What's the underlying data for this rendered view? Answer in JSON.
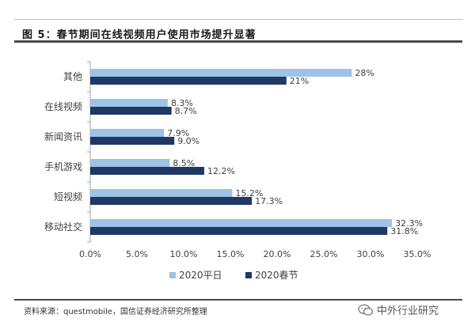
{
  "title": "图 5：春节期间在线视频用户使用市场提升显著",
  "source": "资料来源：questmobile，国信证券经济研究所整理",
  "watermark": "中外行业研究",
  "colors": {
    "series_a": "#9dc3e6",
    "series_b": "#1f3864"
  },
  "chart_data": {
    "type": "bar",
    "orientation": "horizontal",
    "categories": [
      "其他",
      "在线视频",
      "新闻资讯",
      "手机游戏",
      "短视频",
      "移动社交"
    ],
    "series": [
      {
        "name": "2020平日",
        "values": [
          28,
          8.3,
          7.9,
          8.5,
          15.2,
          32.3
        ],
        "labels": [
          "28%",
          "8.3%",
          "7.9%",
          "8.5%",
          "15.2%",
          "32.3%"
        ]
      },
      {
        "name": "2020春节",
        "values": [
          21,
          8.7,
          9.0,
          12.2,
          17.3,
          31.8
        ],
        "labels": [
          "21%",
          "8.7%",
          "9.0%",
          "12.2%",
          "17.3%",
          "31.8%"
        ]
      }
    ],
    "xlim": [
      0,
      35
    ],
    "ticks": [
      0,
      5,
      10,
      15,
      20,
      25,
      30,
      35
    ],
    "tick_labels": [
      "0.0%",
      "5.0%",
      "10.0%",
      "15.0%",
      "20.0%",
      "25.0%",
      "30.0%",
      "35.0%"
    ],
    "legend_position": "bottom",
    "grid": false
  }
}
